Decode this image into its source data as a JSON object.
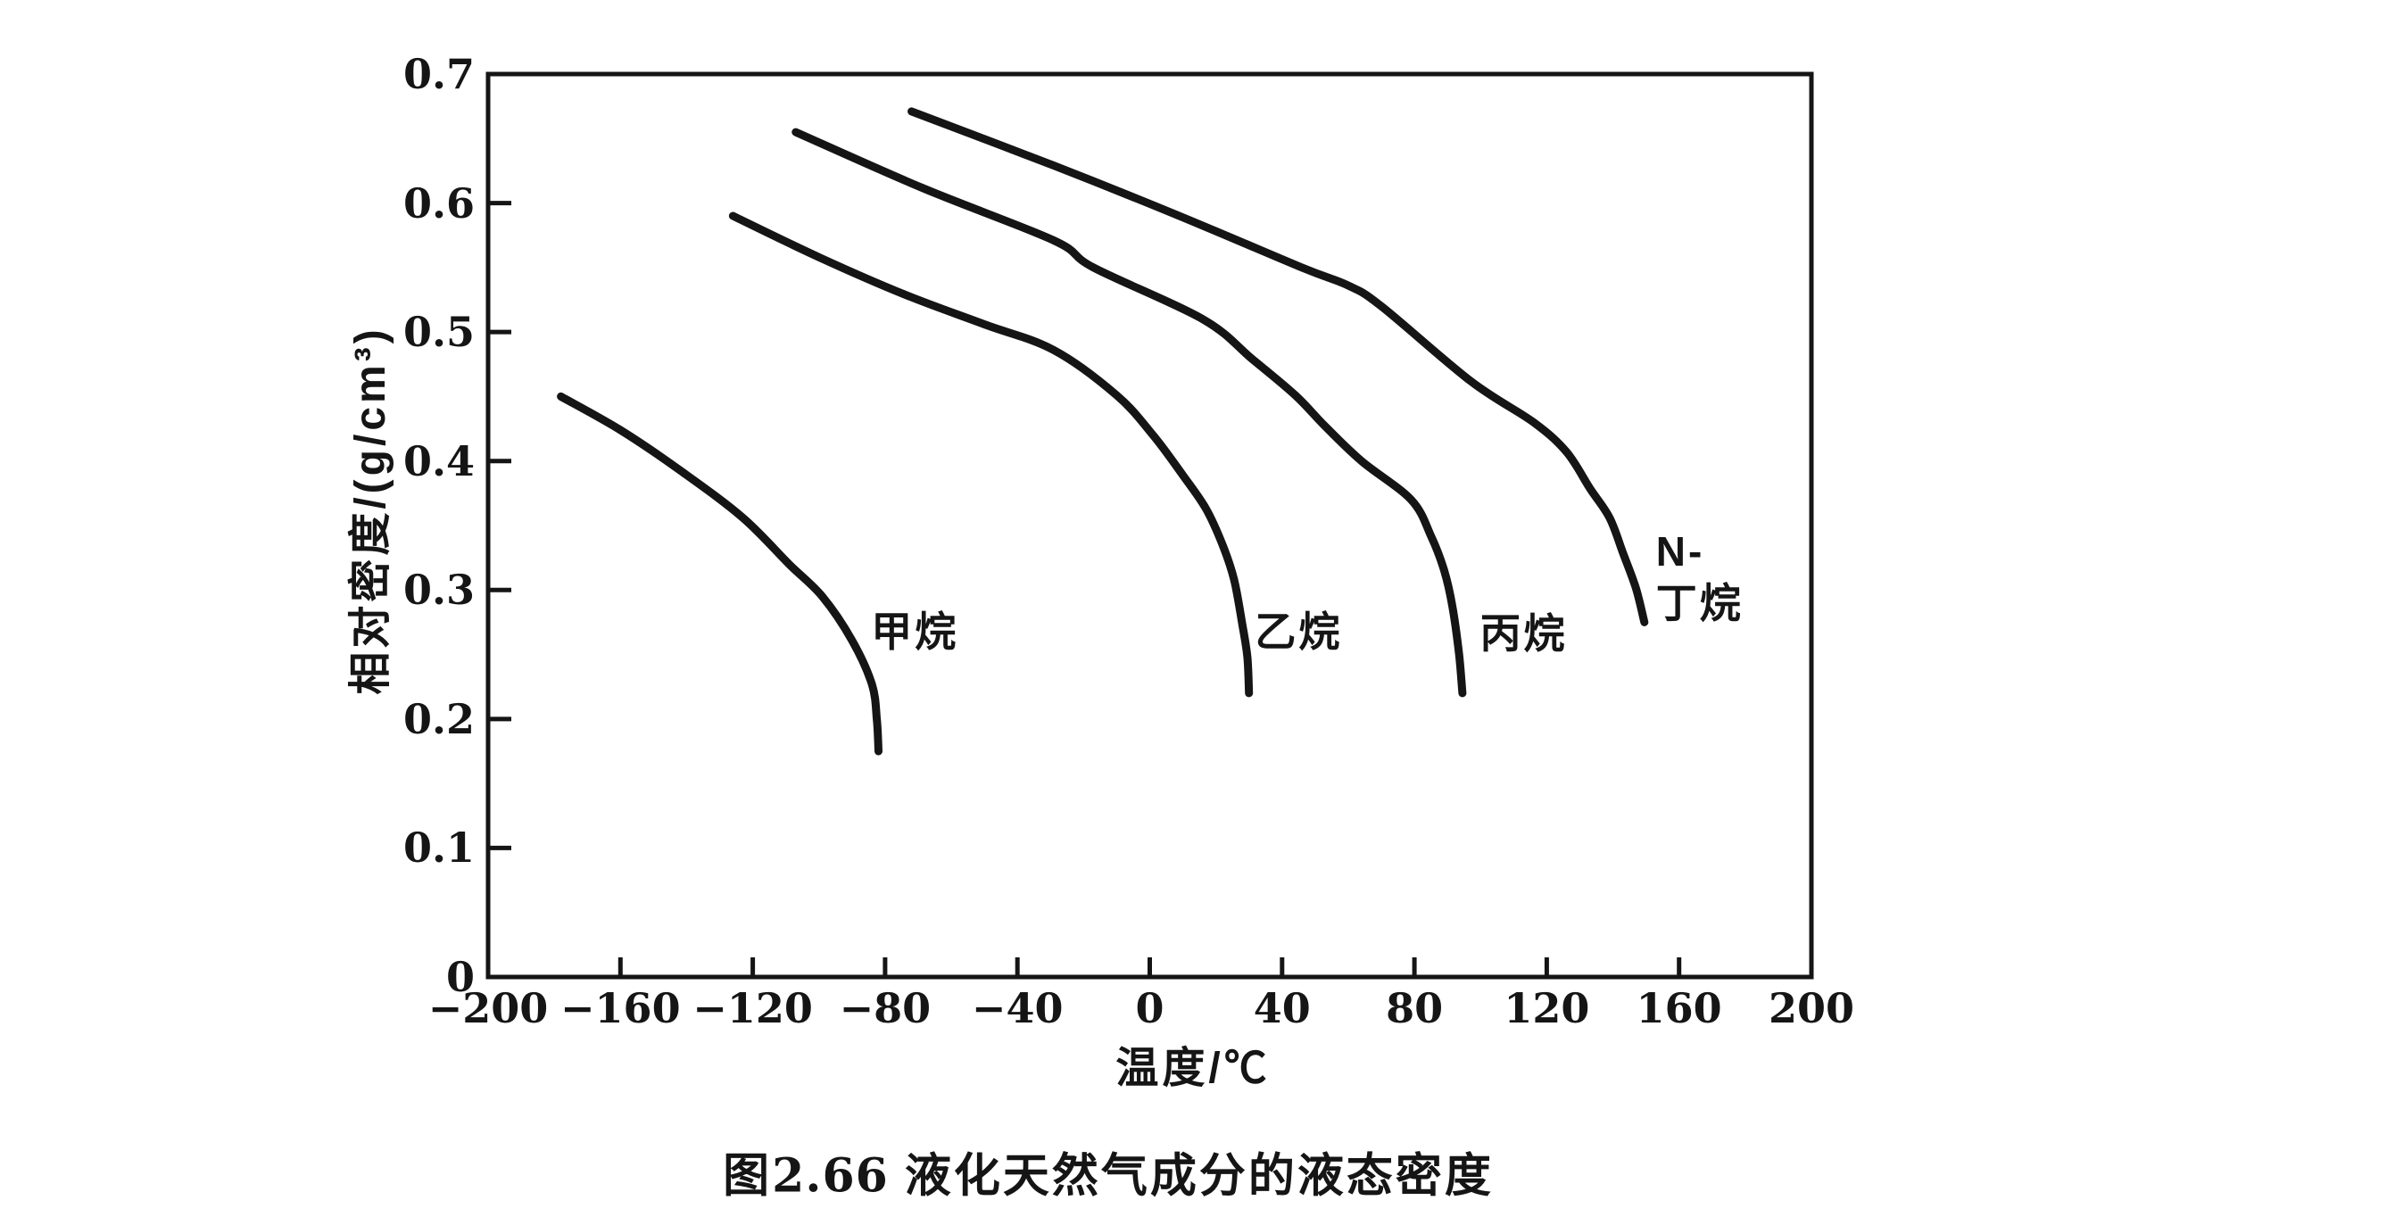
{
  "figure": {
    "caption_label": "图",
    "caption_number": "2.66",
    "caption_title": "液化天然气成分的液态密度"
  },
  "colors": {
    "ink": "#151515",
    "background": "#ffffff"
  },
  "chart_data": {
    "type": "line",
    "title": "图2.66 液化天然气成分的液态密度",
    "xlabel": "温度/℃",
    "ylabel": "相对密度/(g/cm³)",
    "xlim": [
      -200,
      200
    ],
    "ylim": [
      0,
      0.7
    ],
    "grid": false,
    "legend_position": "inline-labels",
    "x_ticks": [
      -200,
      -160,
      -120,
      -80,
      -40,
      0,
      40,
      80,
      120,
      160,
      200
    ],
    "x_tick_labels": [
      "−200",
      "−160",
      "−120",
      "−80",
      "−40",
      "0",
      "40",
      "80",
      "120",
      "160",
      "200"
    ],
    "y_ticks": [
      0,
      0.1,
      0.2,
      0.3,
      0.4,
      0.5,
      0.6,
      0.7
    ],
    "y_tick_labels": [
      "0",
      "0.1",
      "0.2",
      "0.3",
      "0.4",
      "0.5",
      "0.6",
      "0.7"
    ],
    "series": [
      {
        "name": "甲烷",
        "label": "甲烷",
        "label_pos": [
          -71,
          0.268
        ],
        "label_align": "center",
        "points": [
          [
            -178,
            0.45
          ],
          [
            -160,
            0.424
          ],
          [
            -141,
            0.391
          ],
          [
            -123,
            0.356
          ],
          [
            -109,
            0.32
          ],
          [
            -99,
            0.295
          ],
          [
            -90,
            0.261
          ],
          [
            -84,
            0.227
          ],
          [
            -82.5,
            0.2
          ],
          [
            -82,
            0.175
          ]
        ]
      },
      {
        "name": "乙烷",
        "label": "乙烷",
        "label_pos": [
          45,
          0.268
        ],
        "label_align": "center",
        "points": [
          [
            -126,
            0.59
          ],
          [
            -100,
            0.558
          ],
          [
            -74,
            0.529
          ],
          [
            -50,
            0.506
          ],
          [
            -29,
            0.486
          ],
          [
            -10,
            0.451
          ],
          [
            1,
            0.42
          ],
          [
            10,
            0.389
          ],
          [
            17,
            0.363
          ],
          [
            22,
            0.335
          ],
          [
            25.5,
            0.308
          ],
          [
            28,
            0.273
          ],
          [
            29.5,
            0.248
          ],
          [
            30,
            0.22
          ]
        ]
      },
      {
        "name": "丙烷",
        "label": "丙烷",
        "label_pos": [
          113,
          0.266
        ],
        "label_align": "center",
        "points": [
          [
            -107,
            0.655
          ],
          [
            -69,
            0.612
          ],
          [
            -29,
            0.571
          ],
          [
            -17,
            0.55
          ],
          [
            16,
            0.51
          ],
          [
            31,
            0.479
          ],
          [
            44,
            0.451
          ],
          [
            53,
            0.427
          ],
          [
            64,
            0.4
          ],
          [
            79,
            0.37
          ],
          [
            85,
            0.342
          ],
          [
            89,
            0.315
          ],
          [
            91.5,
            0.287
          ],
          [
            93.5,
            0.25
          ],
          [
            94.5,
            0.22
          ]
        ]
      },
      {
        "name": "N-丁烷",
        "label": "N-\n丁烷",
        "label_pos": [
          153,
          0.35
        ],
        "label_align": "left-top",
        "points": [
          [
            -72,
            0.671
          ],
          [
            -29,
            0.629
          ],
          [
            8,
            0.591
          ],
          [
            46,
            0.55
          ],
          [
            60,
            0.536
          ],
          [
            70,
            0.52
          ],
          [
            97,
            0.462
          ],
          [
            116,
            0.43
          ],
          [
            126,
            0.407
          ],
          [
            133,
            0.379
          ],
          [
            139,
            0.356
          ],
          [
            143,
            0.329
          ],
          [
            147,
            0.301
          ],
          [
            149.5,
            0.275
          ]
        ]
      }
    ]
  }
}
